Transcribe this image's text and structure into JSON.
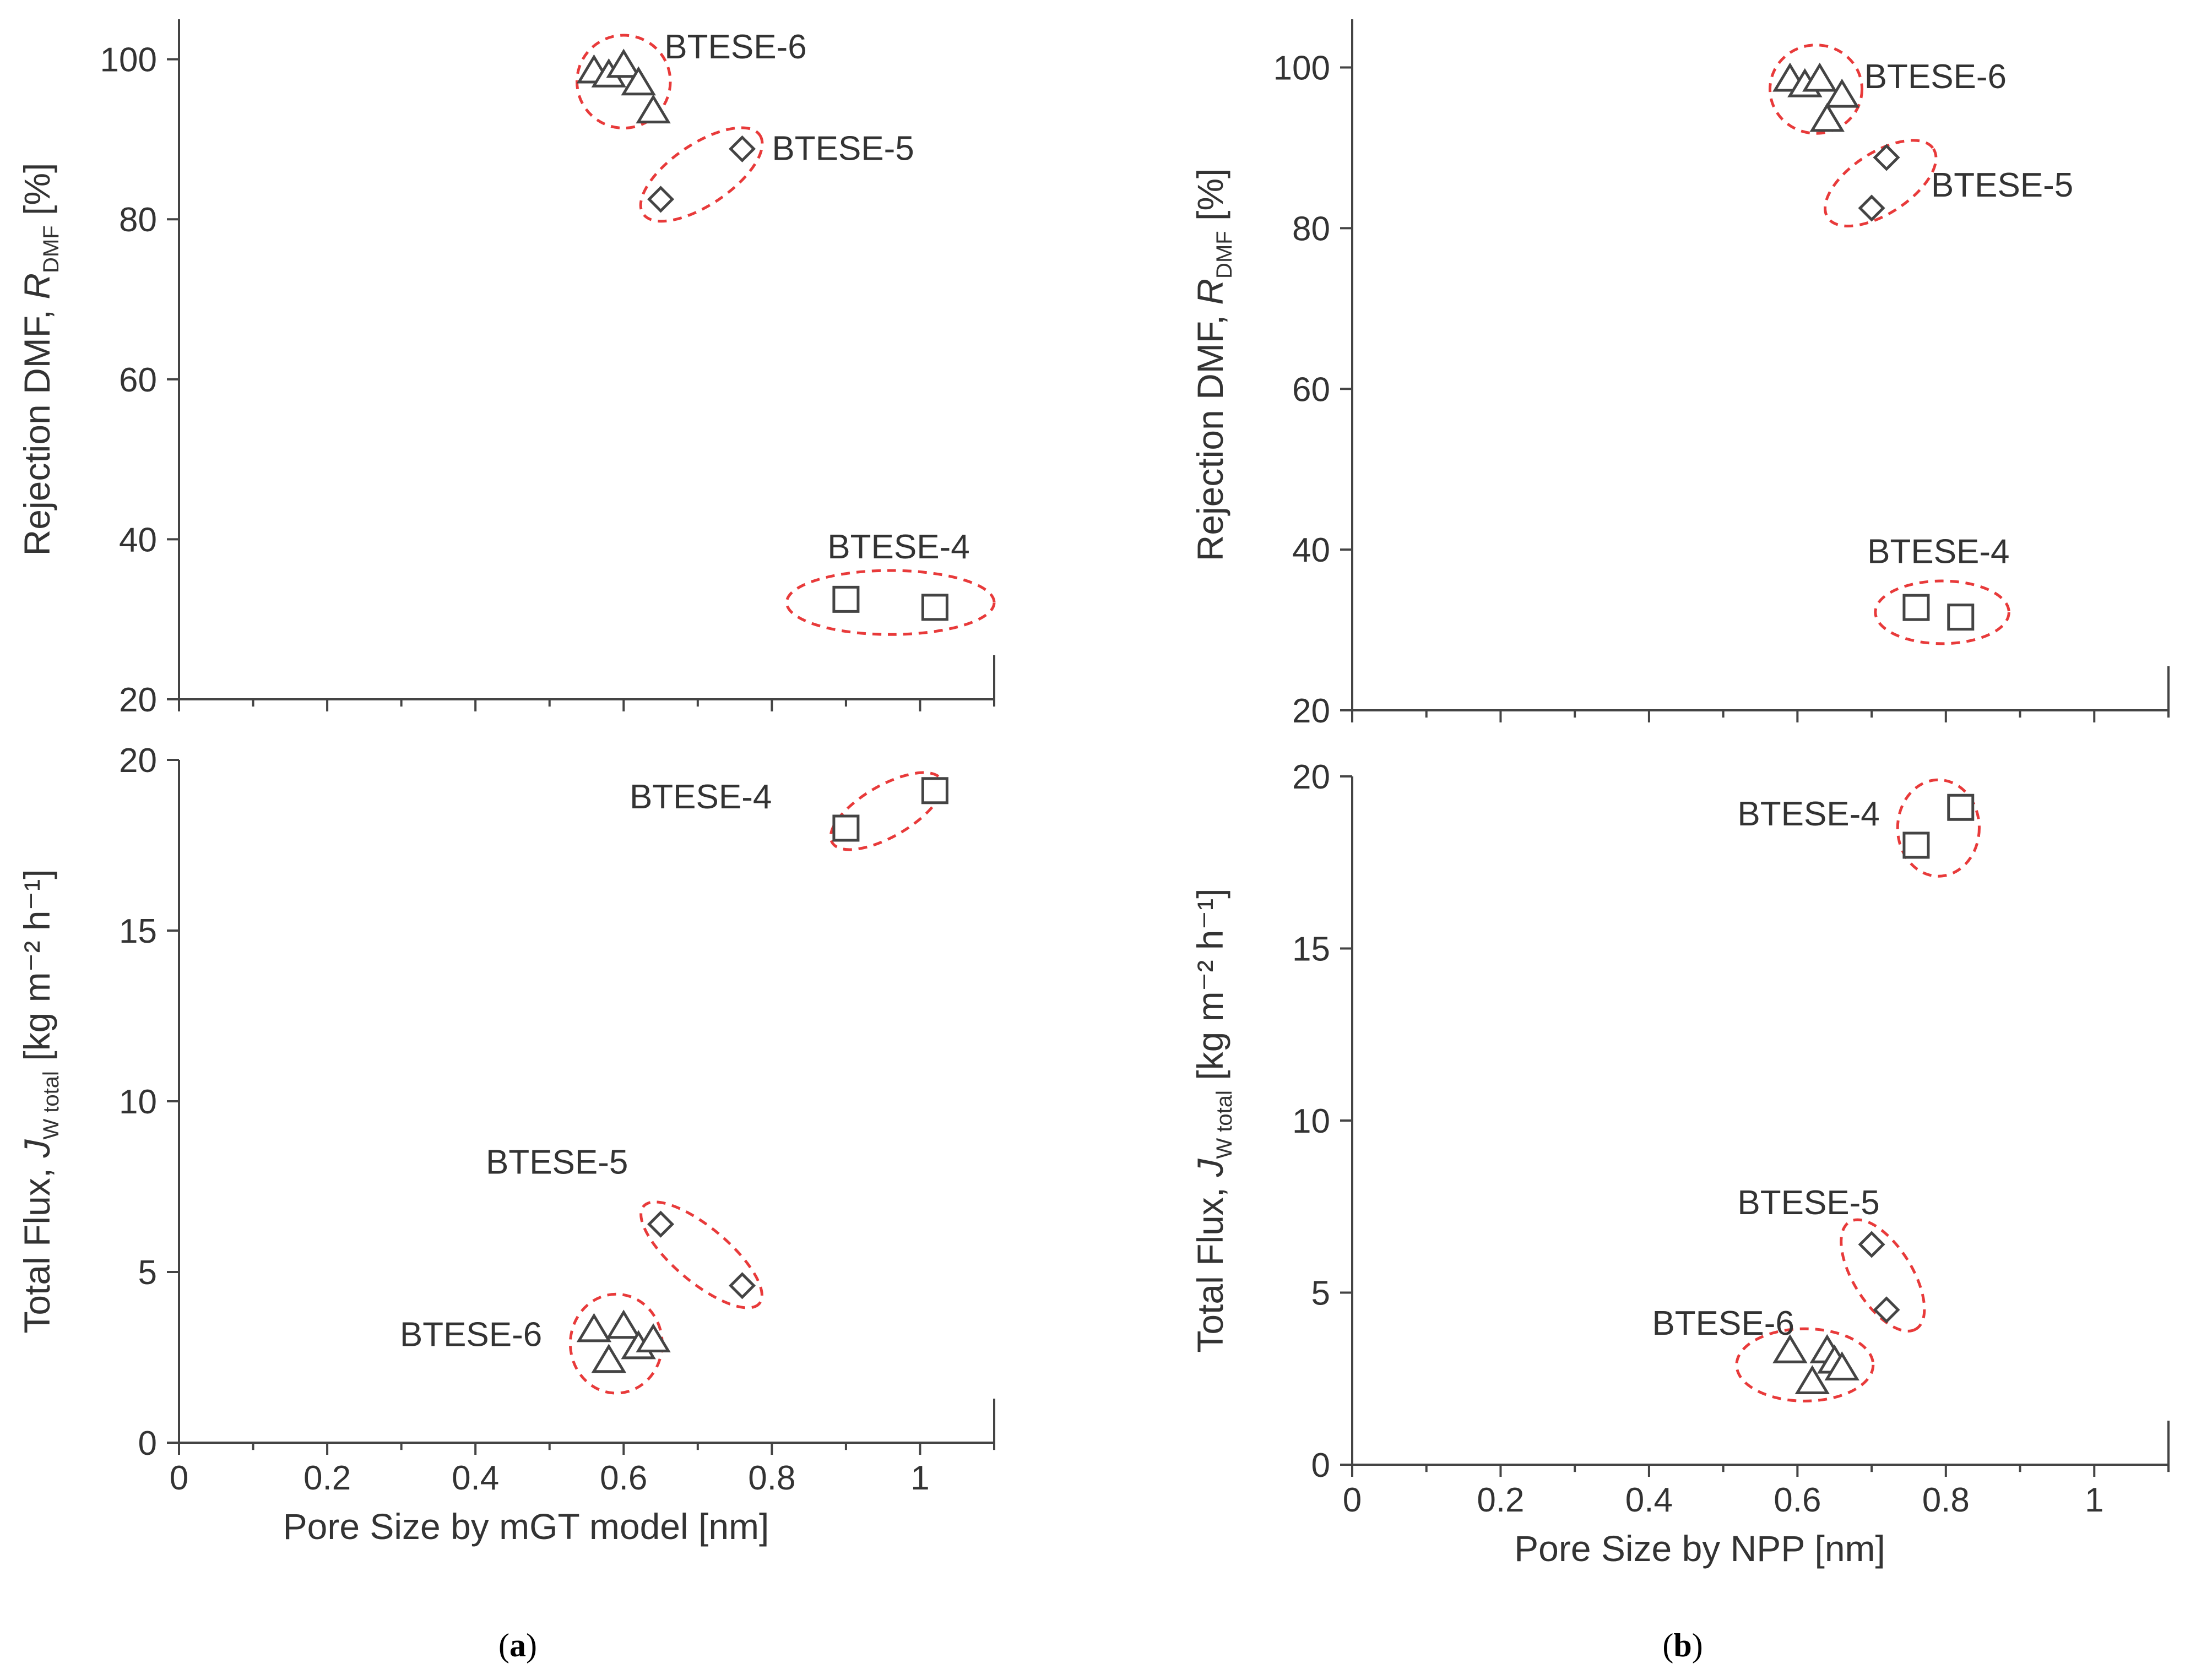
{
  "figure": {
    "panel_labels": [
      {
        "open": "(",
        "letter": "a",
        "close": ")"
      },
      {
        "open": "(",
        "letter": "b",
        "close": ")"
      }
    ]
  },
  "colors": {
    "axis": "#444444",
    "ring": "#e83a3a",
    "text": "#333333"
  },
  "chart_data": [
    {
      "id": "a-top",
      "type": "scatter",
      "panel": "a",
      "xlabel": "",
      "ylabel": "Rejection DMF, R",
      "ylabel_sub": "DMF",
      "ylabel_suffix": " [%]",
      "xlim": [
        0,
        1.1
      ],
      "ylim": [
        20,
        105
      ],
      "yticks": [
        20,
        40,
        60,
        80,
        100
      ],
      "xticks": [
        0,
        0.2,
        0.4,
        0.6,
        0.8,
        1.0
      ],
      "xtick_labels": [],
      "ytick_labels": [
        "20",
        "40",
        "60",
        "80",
        "100"
      ],
      "series": [
        {
          "name": "BTESE-6",
          "marker": "triangle",
          "points": [
            [
              0.56,
              98.5
            ],
            [
              0.58,
              98
            ],
            [
              0.6,
              99.2
            ],
            [
              0.62,
              97
            ],
            [
              0.64,
              93.5
            ]
          ]
        },
        {
          "name": "BTESE-5",
          "marker": "diamond",
          "points": [
            [
              0.65,
              82.5
            ],
            [
              0.76,
              88.8
            ]
          ]
        },
        {
          "name": "BTESE-4",
          "marker": "square",
          "points": [
            [
              0.9,
              32.5
            ],
            [
              1.02,
              31.5
            ]
          ]
        }
      ],
      "annotations": [
        {
          "text": "BTESE-6",
          "x": 0.655,
          "y": 101.5,
          "anchor": "start"
        },
        {
          "text": "BTESE-5",
          "x": 0.8,
          "y": 88.8,
          "anchor": "start"
        },
        {
          "text": "BTESE-4",
          "x": 0.875,
          "y": 39,
          "anchor": "start"
        }
      ],
      "ellipses": [
        {
          "cx": 0.6,
          "cy": 97.2,
          "rx": 0.063,
          "ry": 5.8,
          "rotate": 0
        },
        {
          "cx": 0.705,
          "cy": 85.6,
          "rx": 0.095,
          "ry": 3.8,
          "rotate": -34
        },
        {
          "cx": 0.96,
          "cy": 32.1,
          "rx": 0.14,
          "ry": 4.0,
          "rotate": 0
        }
      ]
    },
    {
      "id": "a-bottom",
      "type": "scatter",
      "panel": "a",
      "xlabel": "Pore Size by mGT model [nm]",
      "ylabel": "Total Flux, J",
      "ylabel_sub": "W total",
      "ylabel_suffix": " [kg m⁻² h⁻¹]",
      "xlim": [
        0,
        1.1
      ],
      "ylim": [
        0,
        20
      ],
      "yticks": [
        0,
        5,
        10,
        15,
        20
      ],
      "xticks": [
        0,
        0.2,
        0.4,
        0.6,
        0.8,
        1.0
      ],
      "xtick_labels": [
        "0",
        "0.2",
        "0.4",
        "0.6",
        "0.8",
        "1"
      ],
      "ytick_labels": [
        "0",
        "5",
        "10",
        "15",
        "20"
      ],
      "series": [
        {
          "name": "BTESE-6",
          "marker": "triangle",
          "points": [
            [
              0.56,
              3.3
            ],
            [
              0.58,
              2.4
            ],
            [
              0.6,
              3.4
            ],
            [
              0.62,
              2.8
            ],
            [
              0.64,
              3.0
            ]
          ]
        },
        {
          "name": "BTESE-5",
          "marker": "diamond",
          "points": [
            [
              0.65,
              6.4
            ],
            [
              0.76,
              4.6
            ]
          ]
        },
        {
          "name": "BTESE-4",
          "marker": "square",
          "points": [
            [
              0.9,
              18.0
            ],
            [
              1.02,
              19.1
            ]
          ]
        }
      ],
      "annotations": [
        {
          "text": "BTESE-4",
          "x": 0.8,
          "y": 18.9,
          "anchor": "end"
        },
        {
          "text": "BTESE-5",
          "x": 0.51,
          "y": 8.2,
          "anchor": "middle"
        },
        {
          "text": "BTESE-6",
          "x": 0.49,
          "y": 3.15,
          "anchor": "end"
        }
      ],
      "ellipses": [
        {
          "cx": 0.59,
          "cy": 2.9,
          "rx": 0.062,
          "ry": 1.45,
          "rotate": 0
        },
        {
          "cx": 0.705,
          "cy": 5.5,
          "rx": 0.102,
          "ry": 0.8,
          "rotate": 40
        },
        {
          "cx": 0.955,
          "cy": 18.5,
          "rx": 0.085,
          "ry": 0.75,
          "rotate": -30
        }
      ]
    },
    {
      "id": "b-top",
      "type": "scatter",
      "panel": "b",
      "xlabel": "",
      "ylabel": "Rejection DMF, R",
      "ylabel_sub": "DMF",
      "ylabel_suffix": " [%]",
      "xlim": [
        0,
        1.1
      ],
      "ylim": [
        20,
        106
      ],
      "yticks": [
        20,
        40,
        60,
        80,
        100
      ],
      "xticks": [
        0,
        0.2,
        0.4,
        0.6,
        0.8,
        1.0
      ],
      "xtick_labels": [],
      "ytick_labels": [
        "20",
        "40",
        "60",
        "80",
        "100"
      ],
      "series": [
        {
          "name": "BTESE-6",
          "marker": "triangle",
          "points": [
            [
              0.59,
              98.5
            ],
            [
              0.61,
              97.8
            ],
            [
              0.63,
              98.5
            ],
            [
              0.64,
              93.5
            ],
            [
              0.66,
              96.5
            ]
          ]
        },
        {
          "name": "BTESE-5",
          "marker": "diamond",
          "points": [
            [
              0.7,
              82.5
            ],
            [
              0.72,
              88.8
            ]
          ]
        },
        {
          "name": "BTESE-4",
          "marker": "square",
          "points": [
            [
              0.76,
              32.8
            ],
            [
              0.82,
              31.6
            ]
          ]
        }
      ],
      "annotations": [
        {
          "text": "BTESE-6",
          "x": 0.69,
          "y": 98.8,
          "anchor": "start"
        },
        {
          "text": "BTESE-5",
          "x": 0.78,
          "y": 85.3,
          "anchor": "start"
        },
        {
          "text": "BTESE-4",
          "x": 0.79,
          "y": 39.7,
          "anchor": "middle"
        }
      ],
      "ellipses": [
        {
          "cx": 0.625,
          "cy": 97.3,
          "rx": 0.062,
          "ry": 5.5,
          "rotate": 0
        },
        {
          "cx": 0.712,
          "cy": 85.6,
          "rx": 0.085,
          "ry": 3.8,
          "rotate": -33
        },
        {
          "cx": 0.795,
          "cy": 32.2,
          "rx": 0.09,
          "ry": 3.9,
          "rotate": 0
        }
      ]
    },
    {
      "id": "b-bottom",
      "type": "scatter",
      "panel": "b",
      "xlabel": "Pore Size by NPP [nm]",
      "ylabel": "Total Flux, J",
      "ylabel_sub": "W total",
      "ylabel_suffix": " [kg m⁻² h⁻¹]",
      "xlim": [
        0,
        1.1
      ],
      "ylim": [
        0,
        20
      ],
      "yticks": [
        0,
        5,
        10,
        15,
        20
      ],
      "xticks": [
        0,
        0.2,
        0.4,
        0.6,
        0.8,
        1.0
      ],
      "xtick_labels": [
        "0",
        "0.2",
        "0.4",
        "0.6",
        "0.8",
        "1"
      ],
      "ytick_labels": [
        "0",
        "5",
        "10",
        "15",
        "20"
      ],
      "series": [
        {
          "name": "BTESE-6",
          "marker": "triangle",
          "points": [
            [
              0.59,
              3.3
            ],
            [
              0.62,
              2.4
            ],
            [
              0.64,
              3.3
            ],
            [
              0.65,
              3.0
            ],
            [
              0.66,
              2.8
            ]
          ]
        },
        {
          "name": "BTESE-5",
          "marker": "diamond",
          "points": [
            [
              0.7,
              6.4
            ],
            [
              0.72,
              4.5
            ]
          ]
        },
        {
          "name": "BTESE-4",
          "marker": "square",
          "points": [
            [
              0.76,
              18.0
            ],
            [
              0.82,
              19.1
            ]
          ]
        }
      ],
      "annotations": [
        {
          "text": "BTESE-4",
          "x": 0.615,
          "y": 18.9,
          "anchor": "middle"
        },
        {
          "text": "BTESE-5",
          "x": 0.615,
          "y": 7.6,
          "anchor": "middle"
        },
        {
          "text": "BTESE-6",
          "x": 0.5,
          "y": 4.1,
          "anchor": "middle"
        }
      ],
      "ellipses": [
        {
          "cx": 0.79,
          "cy": 18.5,
          "rx": 0.055,
          "ry": 1.4,
          "rotate": 0
        },
        {
          "cx": 0.715,
          "cy": 5.5,
          "rx": 0.085,
          "ry": 0.85,
          "rotate": 58
        },
        {
          "cx": 0.61,
          "cy": 2.9,
          "rx": 0.092,
          "ry": 1.05,
          "rotate": 0
        }
      ]
    }
  ]
}
